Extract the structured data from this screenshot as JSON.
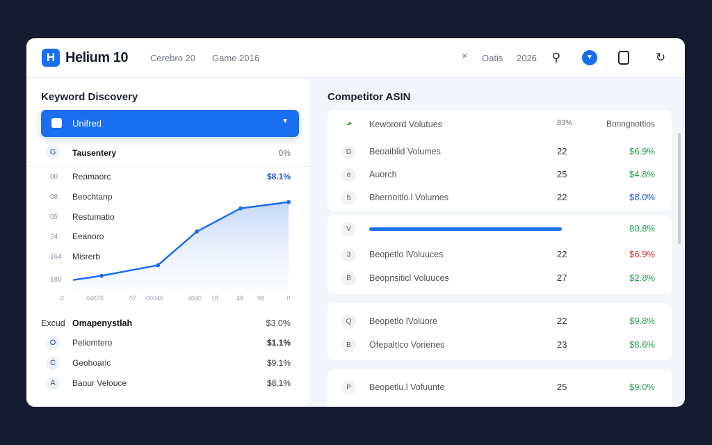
{
  "header": {
    "logo_letter": "H",
    "brand": "Helium 10",
    "links": [
      "Cerebro 20",
      "Game 2016"
    ],
    "right_text": [
      "Oatis",
      "2026"
    ],
    "icons": [
      "close-icon",
      "search-icon",
      "chevron-down-icon",
      "clipboard-icon",
      "refresh-icon"
    ]
  },
  "left": {
    "title": "Keyword Discovery",
    "select": {
      "value": "Unifred"
    },
    "top_row": {
      "icon": "G",
      "label": "Tausentery",
      "value": "0%"
    },
    "rows": [
      {
        "num": "00",
        "label": "Reamaorc",
        "value": "$8.1%"
      },
      {
        "num": "08",
        "label": "Beochtanp"
      },
      {
        "num": "05",
        "label": "Restumatio"
      },
      {
        "num": "24",
        "label": "Eeanoro"
      },
      {
        "num": "164",
        "label": "Misrerb"
      },
      {
        "num": "180"
      }
    ],
    "chart_data": {
      "type": "area",
      "x_ticks": [
        "·2",
        "04676",
        "07",
        "00046",
        "4040",
        "18",
        "48",
        "98",
        ".0"
      ],
      "values": [
        10,
        12,
        17,
        33,
        44,
        47
      ],
      "color": "#1a6ef0",
      "grid": false
    },
    "summary": {
      "prefix": "Excud",
      "label": "Omapenystlah",
      "value": "$3.0%"
    },
    "items": [
      {
        "icon": "O",
        "label": "Peliomtero",
        "value": "$1.1%"
      },
      {
        "icon": "C",
        "label": "Geohoaric",
        "value": "$9.1%"
      },
      {
        "icon": "A",
        "label": "Baour Velouce",
        "value": "$8,1%"
      }
    ]
  },
  "right": {
    "title": "Competitor ASIN",
    "header": {
      "label": "Keworord Volutues",
      "col1": "83%",
      "col2": "Bonngnottios"
    },
    "card1": [
      {
        "icon": "D",
        "label": "Beoaiblid Volumes",
        "num": "22",
        "value": "$6.9%",
        "color": "#1fa34a"
      },
      {
        "icon": "e",
        "label": "Auorch",
        "num": "25",
        "value": "$4.8%",
        "color": "#1fa34a"
      },
      {
        "icon": "b",
        "label": "Bhernoitlo.l Volumes",
        "num": "22",
        "value": "$8.0%",
        "color": "#1a5ad8"
      }
    ],
    "card2_top": {
      "icon": "V",
      "value": "80.8%",
      "progress": 100
    },
    "card2": [
      {
        "icon": "3",
        "label": "Beopetlo lVoluuces",
        "num": "22",
        "value": "$6.9%",
        "color": "#d42a2a"
      },
      {
        "icon": "B",
        "label": "Beopnsiticl Voluuces",
        "num": "27",
        "value": "$2.8%",
        "color": "#1fa34a"
      }
    ],
    "card3": [
      {
        "icon": "Q",
        "label": "Beopetlo lVoluore",
        "num": "22",
        "value": "$9.8%",
        "color": "#1fa34a"
      },
      {
        "icon": "B",
        "label": "Ofepaltico Vorienes",
        "num": "23",
        "value": "$8.6%",
        "color": "#1fa34a"
      }
    ],
    "card4": [
      {
        "icon": "P",
        "label": "Beopetlu.l Vofuunte",
        "num": "25",
        "value": "$9.0%",
        "color": "#1fa34a"
      }
    ]
  }
}
